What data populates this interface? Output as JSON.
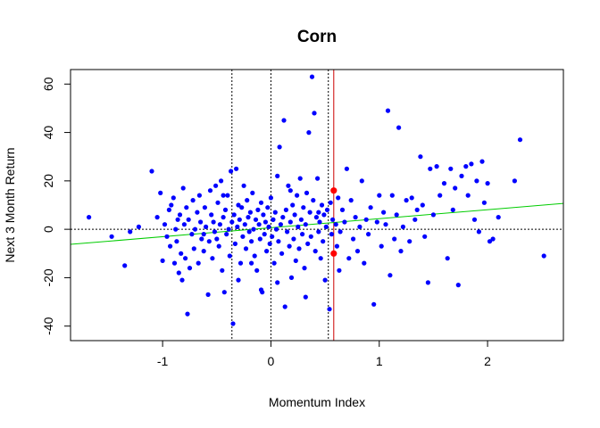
{
  "chart_data": {
    "type": "scatter",
    "title": "Corn",
    "xlabel": "Momentum Index",
    "ylabel": "Next 3 Month Return",
    "xlim": [
      -1.85,
      2.7
    ],
    "ylim": [
      -46,
      66
    ],
    "xticks": [
      "-1",
      "0",
      "1",
      "2"
    ],
    "yticks": [
      "-40",
      "-20",
      "0",
      "20",
      "40",
      "60"
    ],
    "grid": false,
    "legend": "none",
    "colors": {
      "points": "#0000ff",
      "highlight": "#ff0000",
      "regression": "#00cc00",
      "reference": "#000000",
      "current": "#cc0000"
    },
    "reference_lines": {
      "horizontal_y": 0,
      "vertical_dotted_x": [
        -0.36,
        0.0,
        0.53
      ],
      "current_x": 0.58
    },
    "regression": {
      "intercept": 0.65,
      "slope": 3.72
    },
    "highlighted_points": [
      {
        "x": 0.58,
        "y": 16
      },
      {
        "x": 0.58,
        "y": -10
      }
    ],
    "series": [
      {
        "values": [
          [
            -1.68,
            5
          ],
          [
            -1.47,
            -3
          ],
          [
            -1.35,
            -15
          ],
          [
            -1.3,
            -1
          ],
          [
            -1.22,
            1
          ],
          [
            -1.1,
            24
          ],
          [
            -1.05,
            5
          ],
          [
            -1.02,
            15
          ],
          [
            -1.0,
            -13
          ],
          [
            -0.98,
            2
          ],
          [
            -0.96,
            -3
          ],
          [
            -0.94,
            8
          ],
          [
            -0.93,
            -7
          ],
          [
            -0.92,
            10
          ],
          [
            -0.9,
            13
          ],
          [
            -0.89,
            -14
          ],
          [
            -0.88,
            0
          ],
          [
            -0.87,
            -5
          ],
          [
            -0.86,
            4
          ],
          [
            -0.85,
            -18
          ],
          [
            -0.84,
            6
          ],
          [
            -0.83,
            -10
          ],
          [
            -0.82,
            -21
          ],
          [
            -0.81,
            17
          ],
          [
            -0.8,
            2
          ],
          [
            -0.79,
            -12
          ],
          [
            -0.78,
            9
          ],
          [
            -0.77,
            -35
          ],
          [
            -0.76,
            4
          ],
          [
            -0.75,
            -16
          ],
          [
            -0.73,
            -2
          ],
          [
            -0.72,
            12
          ],
          [
            -0.71,
            -8
          ],
          [
            -0.7,
            0
          ],
          [
            -0.68,
            7
          ],
          [
            -0.67,
            -14
          ],
          [
            -0.66,
            14
          ],
          [
            -0.65,
            3
          ],
          [
            -0.64,
            -4
          ],
          [
            -0.62,
            -9
          ],
          [
            -0.61,
            9
          ],
          [
            -0.6,
            1
          ],
          [
            -0.58,
            -27
          ],
          [
            -0.57,
            -5
          ],
          [
            -0.56,
            16
          ],
          [
            -0.55,
            6
          ],
          [
            -0.54,
            -12
          ],
          [
            -0.53,
            3
          ],
          [
            -0.52,
            -1
          ],
          [
            -0.51,
            18
          ],
          [
            -0.5,
            -4
          ],
          [
            -0.49,
            11
          ],
          [
            -0.48,
            -7
          ],
          [
            -0.47,
            2
          ],
          [
            -0.46,
            20
          ],
          [
            -0.45,
            -17
          ],
          [
            -0.44,
            5
          ],
          [
            -0.43,
            -26
          ],
          [
            -0.42,
            8
          ],
          [
            -0.41,
            -2
          ],
          [
            -0.4,
            14
          ],
          [
            -0.39,
            0
          ],
          [
            -0.38,
            -11
          ],
          [
            -0.37,
            24
          ],
          [
            -0.36,
            3
          ],
          [
            -0.35,
            -39
          ],
          [
            -0.34,
            6
          ],
          [
            -0.33,
            -6
          ],
          [
            -0.32,
            25
          ],
          [
            -0.31,
            1
          ],
          [
            -0.3,
            -21
          ],
          [
            -0.29,
            4
          ],
          [
            -0.28,
            -14
          ],
          [
            -0.27,
            9
          ],
          [
            -0.26,
            -3
          ],
          [
            -0.25,
            18
          ],
          [
            -0.24,
            2
          ],
          [
            -0.23,
            -8
          ],
          [
            -0.22,
            12
          ],
          [
            -0.21,
            5
          ],
          [
            -0.2,
            -1
          ],
          [
            -0.19,
            7
          ],
          [
            -0.18,
            -5
          ],
          [
            -0.17,
            15
          ],
          [
            -0.16,
            0
          ],
          [
            -0.15,
            -11
          ],
          [
            -0.14,
            4
          ],
          [
            -0.13,
            -17
          ],
          [
            -0.12,
            8
          ],
          [
            -0.11,
            2
          ],
          [
            -0.1,
            -4
          ],
          [
            -0.09,
            11
          ],
          [
            -0.08,
            -26
          ],
          [
            -0.07,
            6
          ],
          [
            -0.06,
            -2
          ],
          [
            -0.05,
            3
          ],
          [
            -0.04,
            -9
          ],
          [
            -0.03,
            9
          ],
          [
            -0.02,
            1
          ],
          [
            -0.01,
            -6
          ],
          [
            0.0,
            13
          ],
          [
            0.01,
            -3
          ],
          [
            0.02,
            4
          ],
          [
            0.03,
            -14
          ],
          [
            0.04,
            7
          ],
          [
            0.05,
            0
          ],
          [
            0.06,
            22
          ],
          [
            0.07,
            -5
          ],
          [
            0.08,
            34
          ],
          [
            0.09,
            2
          ],
          [
            0.1,
            -10
          ],
          [
            0.11,
            5
          ],
          [
            0.12,
            45
          ],
          [
            0.13,
            -32
          ],
          [
            0.14,
            8
          ],
          [
            0.15,
            -1
          ],
          [
            0.16,
            18
          ],
          [
            0.17,
            -7
          ],
          [
            0.18,
            3
          ],
          [
            0.19,
            -20
          ],
          [
            0.2,
            10
          ],
          [
            0.21,
            -4
          ],
          [
            0.22,
            6
          ],
          [
            0.23,
            -13
          ],
          [
            0.24,
            14
          ],
          [
            0.25,
            1
          ],
          [
            0.26,
            -8
          ],
          [
            0.27,
            21
          ],
          [
            0.28,
            4
          ],
          [
            0.29,
            -2
          ],
          [
            0.3,
            9
          ],
          [
            0.31,
            -16
          ],
          [
            0.32,
            2
          ],
          [
            0.33,
            15
          ],
          [
            0.34,
            -6
          ],
          [
            0.35,
            40
          ],
          [
            0.36,
            7
          ],
          [
            0.37,
            -3
          ],
          [
            0.38,
            63
          ],
          [
            0.39,
            12
          ],
          [
            0.4,
            48
          ],
          [
            0.41,
            -9
          ],
          [
            0.42,
            5
          ],
          [
            0.43,
            21
          ],
          [
            0.44,
            -1
          ],
          [
            0.45,
            3
          ],
          [
            0.46,
            -12
          ],
          [
            0.47,
            10
          ],
          [
            0.48,
            -5
          ],
          [
            0.49,
            6
          ],
          [
            0.5,
            -21
          ],
          [
            0.51,
            1
          ],
          [
            0.52,
            8
          ],
          [
            0.54,
            -33
          ],
          [
            0.55,
            11
          ],
          [
            0.56,
            -2
          ],
          [
            0.57,
            4
          ],
          [
            0.6,
            2
          ],
          [
            0.61,
            -7
          ],
          [
            0.62,
            13
          ],
          [
            0.63,
            -17
          ],
          [
            0.64,
            -1
          ],
          [
            0.66,
            8
          ],
          [
            0.68,
            3
          ],
          [
            0.7,
            25
          ],
          [
            0.72,
            -12
          ],
          [
            0.74,
            12
          ],
          [
            0.76,
            -4
          ],
          [
            0.78,
            5
          ],
          [
            0.8,
            -9
          ],
          [
            0.82,
            1
          ],
          [
            0.84,
            20
          ],
          [
            0.86,
            -14
          ],
          [
            0.88,
            4
          ],
          [
            0.9,
            -2
          ],
          [
            0.92,
            9
          ],
          [
            0.95,
            -31
          ],
          [
            0.98,
            3
          ],
          [
            1.0,
            14
          ],
          [
            1.02,
            -7
          ],
          [
            1.04,
            7
          ],
          [
            1.06,
            2
          ],
          [
            1.08,
            49
          ],
          [
            1.1,
            -19
          ],
          [
            1.12,
            14
          ],
          [
            1.14,
            -4
          ],
          [
            1.16,
            6
          ],
          [
            1.18,
            42
          ],
          [
            1.2,
            -9
          ],
          [
            1.22,
            1
          ],
          [
            1.25,
            12
          ],
          [
            1.28,
            -5
          ],
          [
            1.3,
            13
          ],
          [
            1.33,
            4
          ],
          [
            1.35,
            8
          ],
          [
            1.38,
            30
          ],
          [
            1.4,
            10
          ],
          [
            1.42,
            -3
          ],
          [
            1.45,
            -22
          ],
          [
            1.47,
            25
          ],
          [
            1.5,
            6
          ],
          [
            1.53,
            26
          ],
          [
            1.56,
            14
          ],
          [
            1.6,
            19
          ],
          [
            1.63,
            -12
          ],
          [
            1.66,
            25
          ],
          [
            1.68,
            8
          ],
          [
            1.7,
            17
          ],
          [
            1.73,
            -23
          ],
          [
            1.76,
            22
          ],
          [
            1.8,
            26
          ],
          [
            1.82,
            14
          ],
          [
            1.85,
            27
          ],
          [
            1.88,
            4
          ],
          [
            1.9,
            20
          ],
          [
            1.92,
            -1
          ],
          [
            1.95,
            28
          ],
          [
            1.97,
            11
          ],
          [
            2.0,
            19
          ],
          [
            2.02,
            -5
          ],
          [
            2.05,
            -4
          ],
          [
            2.1,
            5
          ],
          [
            2.25,
            20
          ],
          [
            2.3,
            37
          ],
          [
            2.52,
            -11
          ],
          [
            -0.3,
            10
          ],
          [
            -0.18,
            -14
          ],
          [
            0.06,
            -22
          ],
          [
            0.18,
            16
          ],
          [
            0.32,
            -28
          ],
          [
            -0.62,
            -2
          ],
          [
            -0.44,
            14
          ],
          [
            0.02,
            4
          ],
          [
            0.44,
            7
          ],
          [
            -0.09,
            -25
          ]
        ]
      }
    ]
  }
}
